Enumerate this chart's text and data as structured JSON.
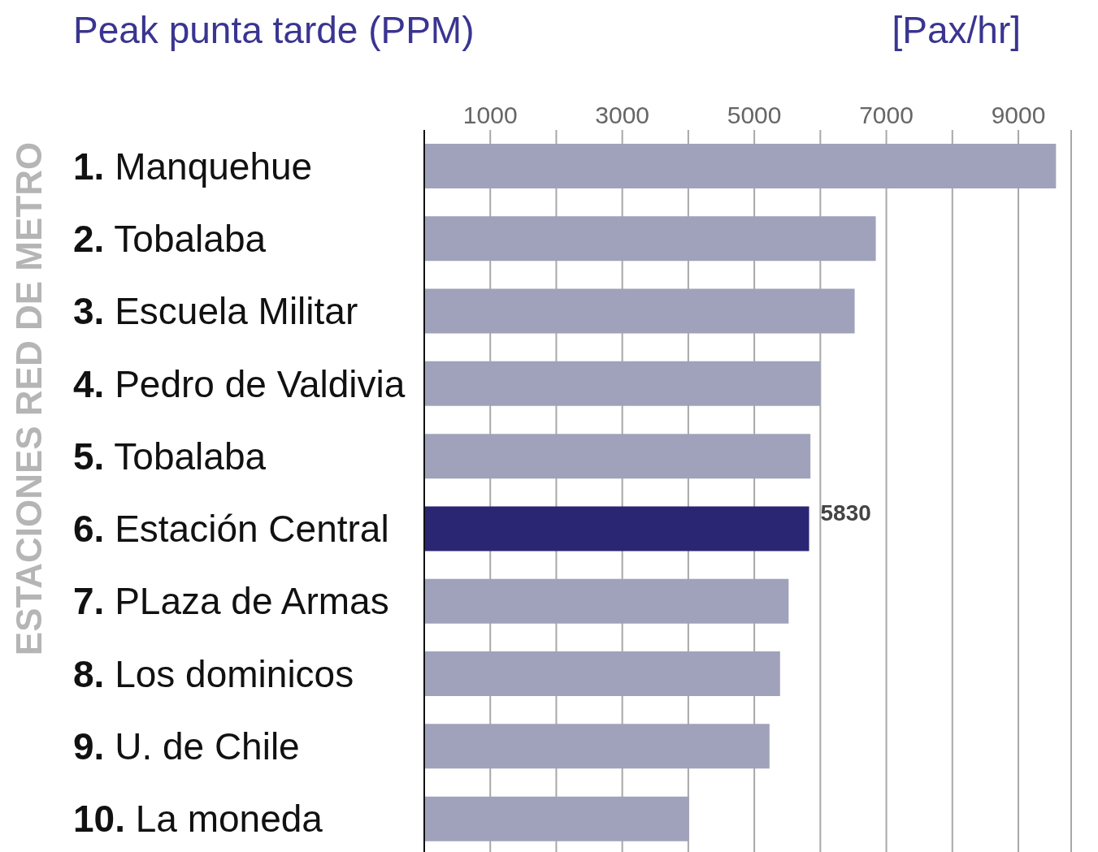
{
  "chart_data": {
    "type": "bar",
    "orientation": "horizontal",
    "title": "Peak punta tarde (PPM)",
    "xlabel": "[Pax/hr]",
    "ylabel": "ESTACIONES RED DE METRO",
    "categories": [
      "1. Manquehue",
      "2. Tobalaba",
      "3. Escuela Militar",
      "4. Pedro de Valdivia",
      "5. Tobalaba",
      "6. Estación Central",
      "7. PLaza de Armas",
      "8. Los dominicos",
      "9. U. de Chile",
      "10. La moneda"
    ],
    "values": [
      9570,
      6840,
      6520,
      6000,
      5850,
      5830,
      5520,
      5390,
      5230,
      4010
    ],
    "colors": [
      "#a0a2bc",
      "#a0a2bc",
      "#a0a2bc",
      "#a0a2bc",
      "#a0a2bc",
      "#2b2673",
      "#a0a2bc",
      "#a0a2bc",
      "#a0a2bc",
      "#a0a2bc"
    ],
    "value_labels": [
      null,
      null,
      null,
      null,
      null,
      "5830",
      null,
      null,
      null,
      null
    ],
    "xlim": [
      0,
      9800
    ],
    "xticks": [
      {
        "value": 0,
        "label": null
      },
      1000,
      {
        "value": 2000,
        "label": null
      },
      3000,
      {
        "value": 4000,
        "label": null
      },
      5000,
      {
        "value": 6000,
        "label": null
      },
      7000,
      {
        "value": 8000,
        "label": null
      },
      9000
    ],
    "grid": "x",
    "legend": false
  }
}
